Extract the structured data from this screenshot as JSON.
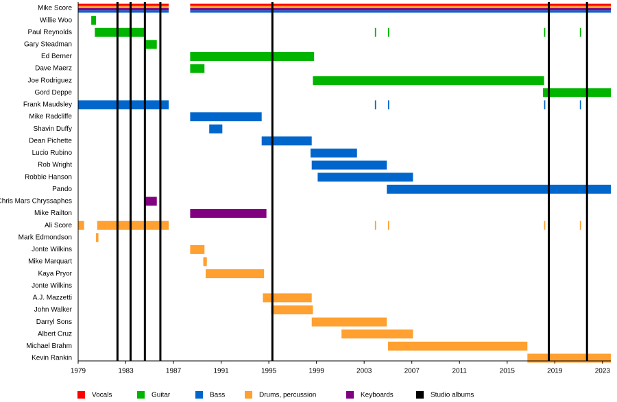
{
  "chart_data": {
    "type": "timeline",
    "xlim": [
      1979,
      2023.7
    ],
    "xticks": [
      1979,
      1983,
      1987,
      1991,
      1995,
      1999,
      2003,
      2007,
      2011,
      2015,
      2019,
      2023
    ],
    "roles": [
      {
        "name": "Vocals",
        "color": "#ff0000"
      },
      {
        "name": "Guitar",
        "color": "#00b400"
      },
      {
        "name": "Bass",
        "color": "#0066cc"
      },
      {
        "name": "Drums, percussion",
        "color": "#ffa030"
      },
      {
        "name": "Keyboards",
        "color": "#800080"
      }
    ],
    "albums": {
      "name": "Studio albums",
      "color": "#000000",
      "values": [
        1982.3,
        1983.4,
        1984.6,
        1985.9,
        1995.3,
        2018.5,
        2021.7
      ]
    },
    "members": [
      {
        "name": "Mike Score",
        "periods": [
          {
            "start": 1979,
            "end": 1986.6,
            "roles": [
              "Vocals",
              "Drums, percussion",
              "Keyboards",
              "Bass"
            ]
          },
          {
            "start": 1988.4,
            "end": 2023.7,
            "roles": [
              "Vocals",
              "Drums, percussion",
              "Keyboards",
              "Bass"
            ]
          }
        ]
      },
      {
        "name": "Willie Woo",
        "periods": [
          {
            "start": 1980.1,
            "end": 1980.5,
            "roles": [
              "Guitar"
            ]
          }
        ]
      },
      {
        "name": "Paul Reynolds",
        "periods": [
          {
            "start": 1980.4,
            "end": 1984.6,
            "roles": [
              "Guitar"
            ]
          },
          {
            "start": 2003.9,
            "end": 2004.0,
            "roles": [
              "Guitar"
            ]
          },
          {
            "start": 2005.0,
            "end": 2005.1,
            "roles": [
              "Guitar"
            ]
          },
          {
            "start": 2018.1,
            "end": 2018.2,
            "roles": [
              "Guitar"
            ]
          },
          {
            "start": 2021.1,
            "end": 2021.2,
            "roles": [
              "Guitar"
            ]
          }
        ]
      },
      {
        "name": "Gary Steadman",
        "periods": [
          {
            "start": 1984.6,
            "end": 1985.6,
            "roles": [
              "Guitar"
            ]
          }
        ]
      },
      {
        "name": "Ed Berner",
        "periods": [
          {
            "start": 1988.4,
            "end": 1998.8,
            "roles": [
              "Guitar"
            ]
          }
        ]
      },
      {
        "name": "Dave Maerz",
        "periods": [
          {
            "start": 1988.4,
            "end": 1989.6,
            "roles": [
              "Guitar"
            ]
          }
        ]
      },
      {
        "name": "Joe Rodriguez",
        "periods": [
          {
            "start": 1998.7,
            "end": 2018.1,
            "roles": [
              "Guitar"
            ]
          }
        ]
      },
      {
        "name": "Gord Deppe",
        "periods": [
          {
            "start": 2018.0,
            "end": 2023.7,
            "roles": [
              "Guitar"
            ]
          }
        ]
      },
      {
        "name": "Frank Maudsley",
        "periods": [
          {
            "start": 1979,
            "end": 1986.6,
            "roles": [
              "Bass"
            ]
          },
          {
            "start": 2003.9,
            "end": 2004.0,
            "roles": [
              "Bass"
            ]
          },
          {
            "start": 2005.0,
            "end": 2005.1,
            "roles": [
              "Bass"
            ]
          },
          {
            "start": 2018.1,
            "end": 2018.2,
            "roles": [
              "Bass"
            ]
          },
          {
            "start": 2021.1,
            "end": 2021.2,
            "roles": [
              "Bass"
            ]
          }
        ]
      },
      {
        "name": "Mike Radcliffe",
        "periods": [
          {
            "start": 1988.4,
            "end": 1994.4,
            "roles": [
              "Bass"
            ]
          }
        ]
      },
      {
        "name": "Shavin Duffy",
        "periods": [
          {
            "start": 1990.0,
            "end": 1991.1,
            "roles": [
              "Bass"
            ]
          }
        ]
      },
      {
        "name": "Dean Pichette",
        "periods": [
          {
            "start": 1994.4,
            "end": 1998.6,
            "roles": [
              "Bass"
            ]
          }
        ]
      },
      {
        "name": "Lucio Rubino",
        "periods": [
          {
            "start": 1998.5,
            "end": 2002.4,
            "roles": [
              "Bass"
            ]
          }
        ]
      },
      {
        "name": "Rob Wright",
        "periods": [
          {
            "start": 1998.6,
            "end": 2004.9,
            "roles": [
              "Bass"
            ]
          }
        ]
      },
      {
        "name": "Robbie Hanson",
        "periods": [
          {
            "start": 1999.1,
            "end": 2007.1,
            "roles": [
              "Bass"
            ]
          }
        ]
      },
      {
        "name": "Pando",
        "periods": [
          {
            "start": 2004.9,
            "end": 2023.7,
            "roles": [
              "Bass"
            ]
          }
        ]
      },
      {
        "name": "Chris Mars Chryssaphes",
        "periods": [
          {
            "start": 1984.6,
            "end": 1985.6,
            "roles": [
              "Keyboards"
            ]
          }
        ]
      },
      {
        "name": "Mike Railton",
        "periods": [
          {
            "start": 1988.4,
            "end": 1994.8,
            "roles": [
              "Keyboards"
            ]
          }
        ]
      },
      {
        "name": "Ali Score",
        "periods": [
          {
            "start": 1979,
            "end": 1979.5,
            "roles": [
              "Drums, percussion"
            ]
          },
          {
            "start": 1980.6,
            "end": 1986.6,
            "roles": [
              "Drums, percussion"
            ]
          },
          {
            "start": 2003.9,
            "end": 2004.0,
            "roles": [
              "Drums, percussion"
            ]
          },
          {
            "start": 2005.0,
            "end": 2005.1,
            "roles": [
              "Drums, percussion"
            ]
          },
          {
            "start": 2018.1,
            "end": 2018.2,
            "roles": [
              "Drums, percussion"
            ]
          },
          {
            "start": 2021.1,
            "end": 2021.2,
            "roles": [
              "Drums, percussion"
            ]
          }
        ]
      },
      {
        "name": "Mark Edmondson",
        "periods": [
          {
            "start": 1980.5,
            "end": 1980.7,
            "roles": [
              "Drums, percussion"
            ]
          }
        ]
      },
      {
        "name": "Jonte Wilkins",
        "periods": [
          {
            "start": 1988.4,
            "end": 1989.6,
            "roles": [
              "Drums, percussion"
            ]
          }
        ]
      },
      {
        "name": "Mike Marquart",
        "periods": [
          {
            "start": 1989.5,
            "end": 1989.8,
            "roles": [
              "Drums, percussion"
            ]
          }
        ]
      },
      {
        "name": "Kaya Pryor",
        "periods": [
          {
            "start": 1989.7,
            "end": 1994.6,
            "roles": [
              "Drums, percussion"
            ]
          }
        ]
      },
      {
        "name": "Jonte Wilkins",
        "periods": []
      },
      {
        "name": "A.J. Mazzetti",
        "periods": [
          {
            "start": 1994.5,
            "end": 1998.6,
            "roles": [
              "Drums, percussion"
            ]
          }
        ]
      },
      {
        "name": "John Walker",
        "periods": [
          {
            "start": 1995.2,
            "end": 1998.7,
            "roles": [
              "Drums, percussion"
            ]
          }
        ]
      },
      {
        "name": "Darryl Sons",
        "periods": [
          {
            "start": 1998.6,
            "end": 2004.9,
            "roles": [
              "Drums, percussion"
            ]
          }
        ]
      },
      {
        "name": "Albert Cruz",
        "periods": [
          {
            "start": 2001.1,
            "end": 2007.1,
            "roles": [
              "Drums, percussion"
            ]
          }
        ]
      },
      {
        "name": "Michael Brahm",
        "periods": [
          {
            "start": 2005.0,
            "end": 2016.7,
            "roles": [
              "Drums, percussion"
            ]
          }
        ]
      },
      {
        "name": "Kevin Rankin",
        "periods": [
          {
            "start": 2016.7,
            "end": 2023.7,
            "roles": [
              "Drums, percussion"
            ]
          }
        ]
      }
    ]
  }
}
